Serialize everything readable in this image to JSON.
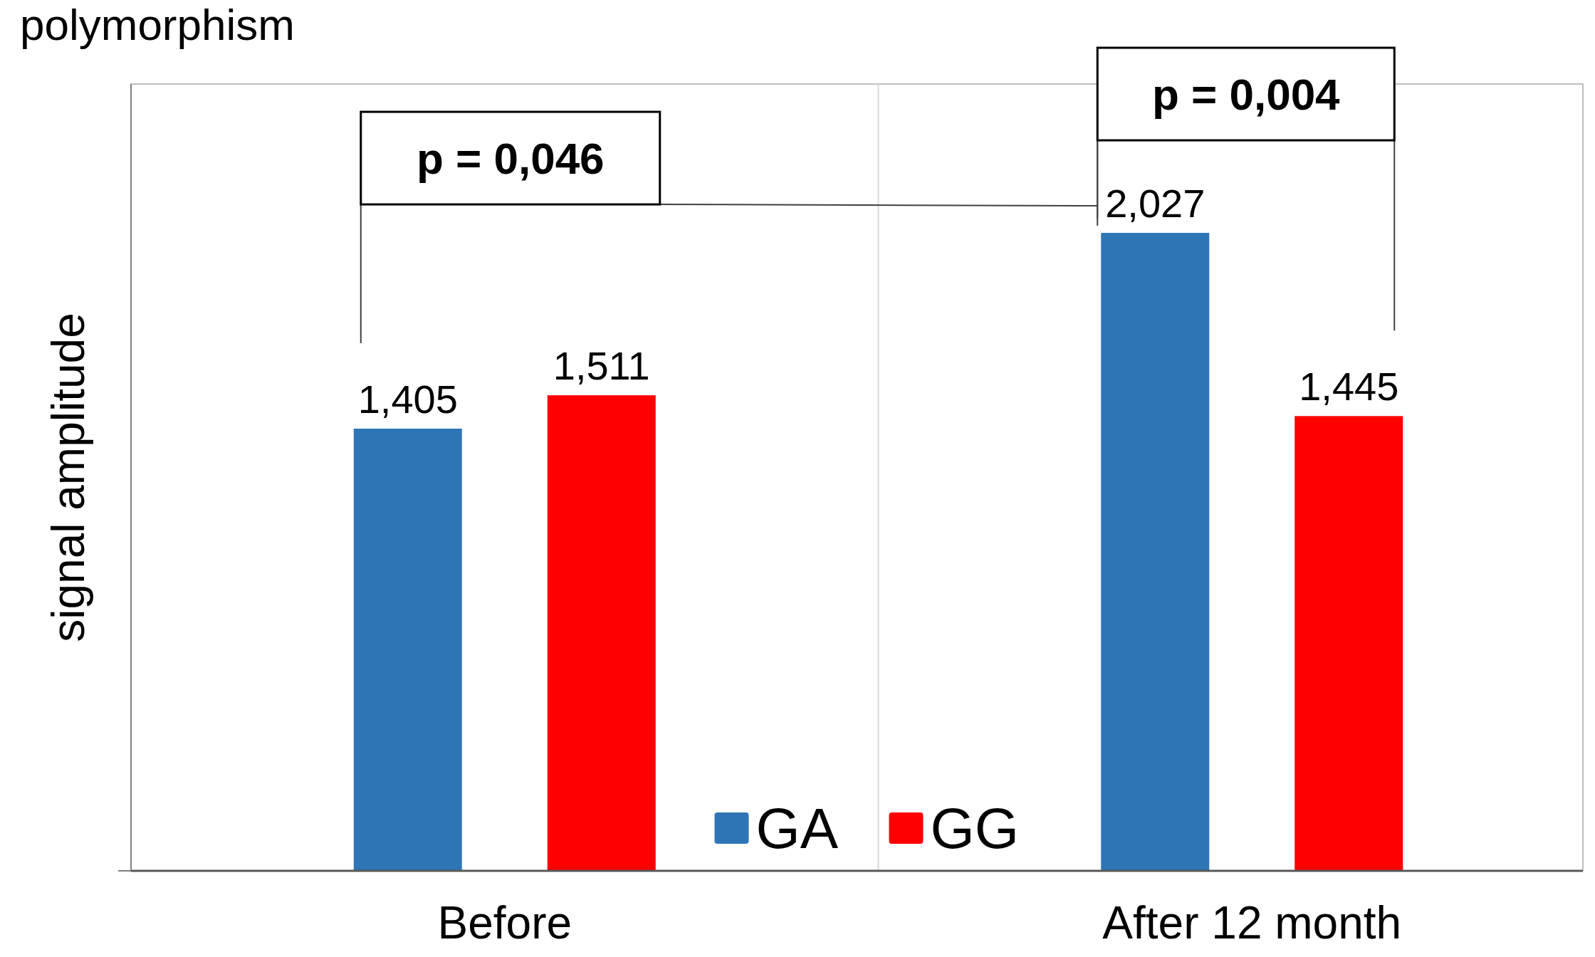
{
  "chart_data": {
    "type": "bar",
    "title": "polymorphism",
    "ylabel": "signal  amplitude",
    "categories": [
      "Before",
      "After 12 month"
    ],
    "series": [
      {
        "name": "GA",
        "color": "#2e75b6",
        "values": [
          1.405,
          2.027
        ],
        "value_labels": [
          "1,405",
          "2,027"
        ]
      },
      {
        "name": "GG",
        "color": "#ff0000",
        "values": [
          1.511,
          1.445
        ],
        "value_labels": [
          "1,511",
          "1,445"
        ]
      }
    ],
    "ylim": [
      0,
      2.5
    ],
    "yticks": [
      {
        "value": 0,
        "label": null
      }
    ],
    "grid": "x",
    "legend": "bottom",
    "tick_labels": "x",
    "annotations": [
      "p = 0,046",
      "p = 0,004"
    ]
  }
}
